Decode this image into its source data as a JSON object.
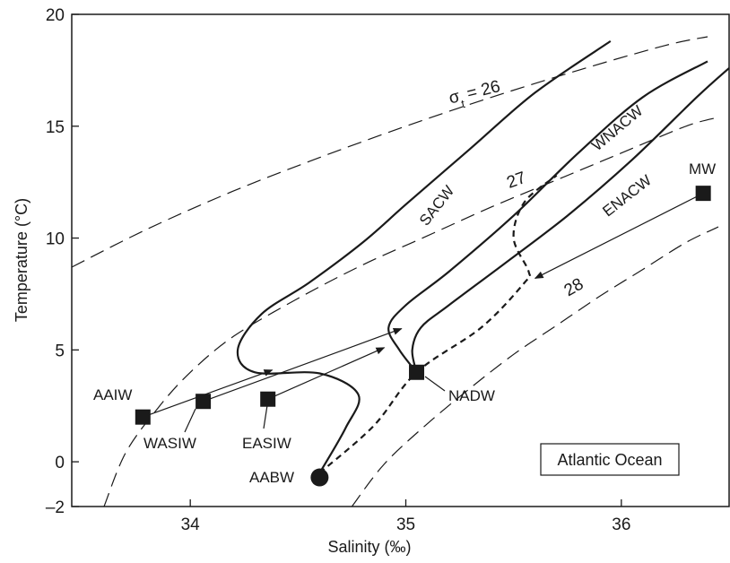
{
  "chart_data": {
    "type": "line",
    "xlabel": "Salinity (‰)",
    "ylabel": "Temperature (°C)",
    "xlim": [
      33.45,
      36.5
    ],
    "ylim": [
      -2,
      20
    ],
    "x_ticks": [
      {
        "value": 34,
        "label": "34"
      },
      {
        "value": 35,
        "label": "35"
      },
      {
        "value": 36,
        "label": "36"
      }
    ],
    "y_ticks": [
      {
        "value": -2,
        "label": "–2"
      },
      {
        "value": 0,
        "label": "0"
      },
      {
        "value": 5,
        "label": "5"
      },
      {
        "value": 10,
        "label": "10"
      },
      {
        "value": 15,
        "label": "15"
      },
      {
        "value": 20,
        "label": "20"
      }
    ],
    "grid": false,
    "box_annotation": "Atlantic Ocean",
    "sigma_label": {
      "symbol": "σ",
      "subscript": "t",
      "text": " = 26"
    },
    "isopycnals": [
      {
        "label": "",
        "points": [
          [
            33.45,
            8.7
          ],
          [
            33.8,
            10.4
          ],
          [
            34.2,
            12.1
          ],
          [
            34.6,
            13.6
          ],
          [
            35.0,
            15.0
          ],
          [
            35.4,
            16.3
          ],
          [
            35.8,
            17.5
          ],
          [
            36.2,
            18.6
          ],
          [
            36.4,
            19.0
          ]
        ]
      },
      {
        "label": "27",
        "points": [
          [
            33.6,
            -2.0
          ],
          [
            33.7,
            0.4
          ],
          [
            33.85,
            2.4
          ],
          [
            34.0,
            4.0
          ],
          [
            34.2,
            5.6
          ],
          [
            34.5,
            7.3
          ],
          [
            34.8,
            8.8
          ],
          [
            35.1,
            10.1
          ],
          [
            35.4,
            11.4
          ],
          [
            35.7,
            12.6
          ],
          [
            36.0,
            13.8
          ],
          [
            36.3,
            15.0
          ],
          [
            36.45,
            15.4
          ]
        ]
      },
      {
        "label": "28",
        "points": [
          [
            34.75,
            -2.0
          ],
          [
            34.9,
            -0.1
          ],
          [
            35.1,
            1.7
          ],
          [
            35.3,
            3.3
          ],
          [
            35.5,
            4.8
          ],
          [
            35.7,
            6.1
          ],
          [
            35.9,
            7.4
          ],
          [
            36.1,
            8.6
          ],
          [
            36.3,
            9.8
          ],
          [
            36.45,
            10.5
          ]
        ]
      }
    ],
    "curves": [
      {
        "name": "SACW",
        "points": [
          [
            34.6,
            -0.5
          ],
          [
            34.72,
            1.5
          ],
          [
            34.78,
            3.0
          ],
          [
            34.6,
            3.95
          ],
          [
            34.3,
            4.0
          ],
          [
            34.22,
            5.0
          ],
          [
            34.33,
            6.6
          ],
          [
            34.55,
            8.0
          ],
          [
            34.8,
            9.8
          ],
          [
            35.0,
            11.5
          ],
          [
            35.3,
            14.0
          ],
          [
            35.6,
            16.5
          ],
          [
            35.95,
            18.8
          ]
        ]
      },
      {
        "name": "WNACW",
        "points": [
          [
            35.05,
            4.0
          ],
          [
            34.97,
            5.0
          ],
          [
            34.92,
            6.0
          ],
          [
            35.0,
            7.0
          ],
          [
            35.2,
            8.5
          ],
          [
            35.5,
            11.0
          ],
          [
            35.8,
            13.8
          ],
          [
            36.1,
            16.3
          ],
          [
            36.4,
            17.9
          ]
        ]
      },
      {
        "name": "ENACW",
        "points": [
          [
            35.05,
            4.0
          ],
          [
            35.03,
            5.0
          ],
          [
            35.07,
            6.0
          ],
          [
            35.2,
            7.0
          ],
          [
            35.45,
            8.8
          ],
          [
            35.75,
            11.0
          ],
          [
            36.05,
            13.5
          ],
          [
            36.35,
            16.3
          ],
          [
            36.5,
            17.6
          ]
        ]
      },
      {
        "name": "",
        "style": "dashed",
        "points": [
          [
            34.6,
            -0.5
          ],
          [
            34.85,
            1.6
          ],
          [
            35.05,
            4.0
          ],
          [
            35.35,
            6.0
          ],
          [
            35.55,
            8.0
          ],
          [
            35.57,
            8.5
          ],
          [
            35.5,
            10.0
          ],
          [
            35.55,
            11.6
          ],
          [
            35.7,
            12.8
          ]
        ]
      }
    ],
    "points": [
      {
        "name": "AAIW",
        "x": 33.78,
        "y": 2.0,
        "marker": "square"
      },
      {
        "name": "WASIW",
        "x": 34.06,
        "y": 2.7,
        "marker": "square"
      },
      {
        "name": "EASIW",
        "x": 34.36,
        "y": 2.8,
        "marker": "square"
      },
      {
        "name": "NADW",
        "x": 35.05,
        "y": 4.0,
        "marker": "square"
      },
      {
        "name": "MW",
        "x": 36.38,
        "y": 12.0,
        "marker": "square"
      },
      {
        "name": "AABW",
        "x": 34.6,
        "y": -0.7,
        "marker": "circle"
      }
    ],
    "arrows": [
      {
        "from": [
          33.78,
          2.0
        ],
        "to": [
          34.38,
          4.1
        ]
      },
      {
        "from": [
          34.06,
          2.7
        ],
        "to": [
          34.98,
          5.95
        ]
      },
      {
        "from": [
          34.36,
          2.8
        ],
        "to": [
          34.9,
          5.1
        ]
      },
      {
        "from": [
          36.38,
          12.0
        ],
        "to": [
          35.6,
          8.2
        ]
      }
    ]
  }
}
